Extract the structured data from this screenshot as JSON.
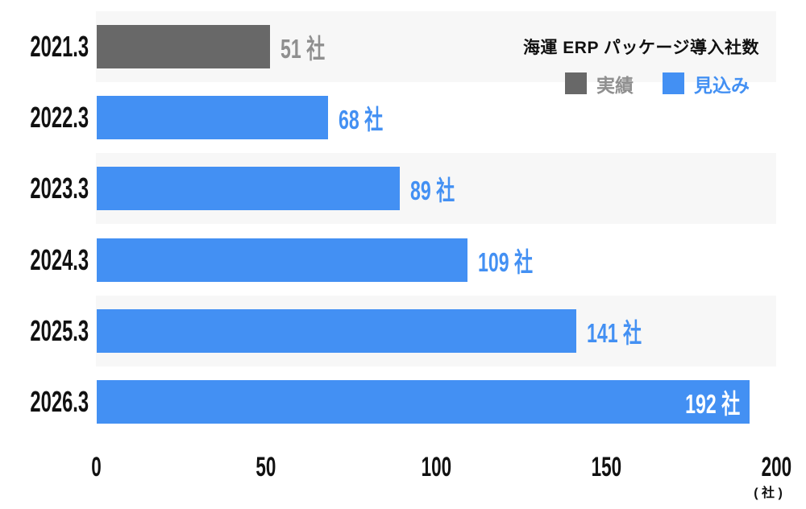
{
  "chart_data": {
    "type": "bar",
    "orientation": "horizontal",
    "title": "海運 ERP パッケージ導入社数",
    "categories": [
      "2021.3",
      "2022.3",
      "2023.3",
      "2024.3",
      "2025.3",
      "2026.3"
    ],
    "series": [
      {
        "name": "実績",
        "role": "actual",
        "color": "#686868",
        "label_color": "#8f8f8f",
        "values": [
          51,
          null,
          null,
          null,
          null,
          null
        ]
      },
      {
        "name": "見込み",
        "role": "forecast",
        "color": "#4390f3",
        "label_color": "#4390f3",
        "values": [
          null,
          68,
          89,
          109,
          141,
          192
        ]
      }
    ],
    "value_suffix": "社",
    "xlim": [
      0,
      200
    ],
    "x_ticks": [
      "0",
      "50",
      "100",
      "150",
      "200"
    ],
    "x_axis_unit": "( 社 )",
    "legend_position": "top-right",
    "grid": false,
    "row_band_colors": [
      "#f7f7f7",
      "#ffffff"
    ],
    "inside_label_color": "#ffffff",
    "category_text_color": "#111111",
    "axis_text_color": "#111111"
  }
}
